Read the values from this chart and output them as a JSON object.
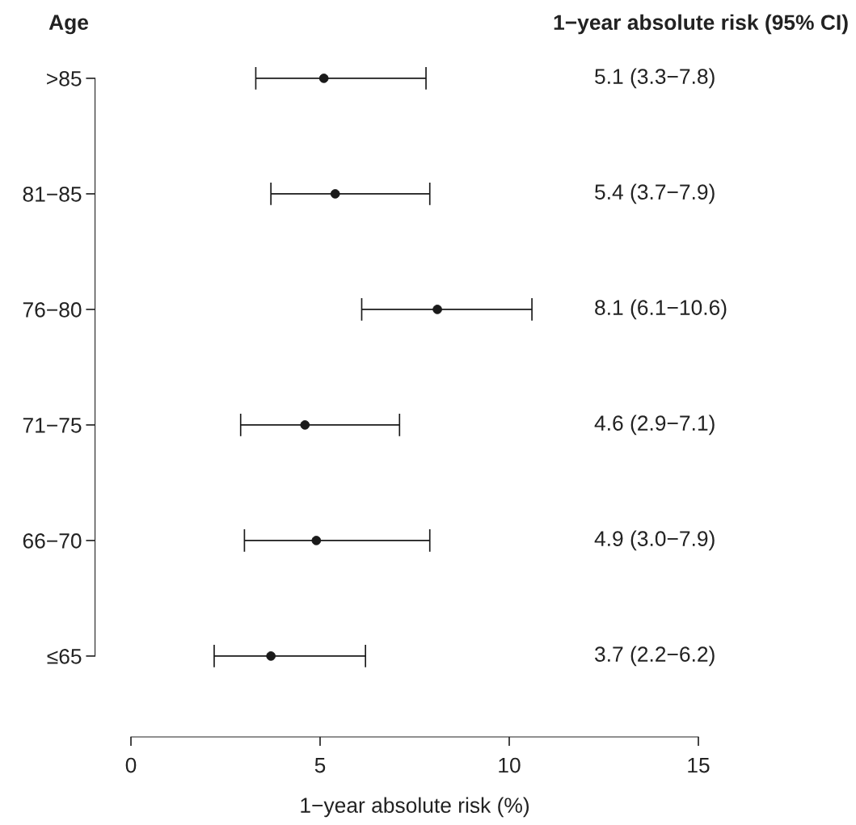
{
  "chart_data": {
    "type": "scatter",
    "orientation": "horizontal",
    "ylabel": "Age",
    "xlabel": "1−year absolute risk (%)",
    "annotations": [
      "1−year absolute risk (95% CI)",
      "5.1 (3.3−7.8)",
      "5.4 (3.7−7.9)",
      "8.1 (6.1−10.6)",
      "4.6 (2.9−7.1)",
      "4.9 (3.0−7.9)",
      "3.7 (2.2−6.2)"
    ],
    "categories": [
      ">85",
      "81−85",
      "76−80",
      "71−75",
      "66−70",
      "≤65"
    ],
    "values": [
      5.1,
      5.4,
      8.1,
      4.6,
      4.9,
      3.7
    ],
    "errors": [
      [
        3.3,
        7.8
      ],
      [
        3.7,
        7.9
      ],
      [
        6.1,
        10.6
      ],
      [
        2.9,
        7.1
      ],
      [
        3.0,
        7.9
      ],
      [
        2.2,
        6.2
      ]
    ],
    "color": "#1a1a1a",
    "marker": "circle",
    "xlim": [
      0,
      15
    ],
    "xticks": [
      0,
      5,
      10,
      15
    ],
    "grid": false,
    "legend": false
  }
}
